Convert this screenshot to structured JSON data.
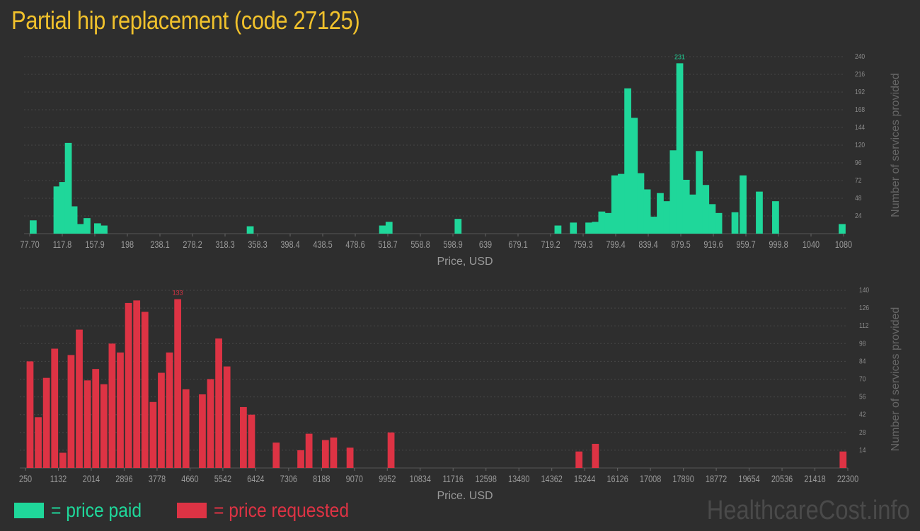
{
  "title": "Partial hip replacement (code 27125)",
  "colors": {
    "paid": "#1fd79a",
    "requested": "#dd3344",
    "title": "#f0c12c"
  },
  "legend": {
    "paid": "= price paid",
    "requested": "= price requested"
  },
  "watermark": "HealthcareCost.info",
  "chart_data": [
    {
      "type": "bar",
      "series": [
        {
          "name": "price paid",
          "color": "#1fd79a"
        }
      ],
      "xlabel": "Price, USD",
      "ylabel": "Number of services provided",
      "ylim": [
        0,
        240
      ],
      "yticks": [
        24,
        48,
        72,
        96,
        120,
        144,
        168,
        192,
        216,
        240
      ],
      "xlim": [
        77.7,
        1080
      ],
      "xticks": [
        "77.70",
        "117.8",
        "157.9",
        "198",
        "238.1",
        "278.2",
        "318.3",
        "358.3",
        "398.4",
        "438.5",
        "478.6",
        "518.7",
        "558.8",
        "598.9",
        "639",
        "679.1",
        "719.2",
        "759.3",
        "799.4",
        "839.4",
        "879.5",
        "919.6",
        "959.7",
        "999.8",
        "1040",
        "1080"
      ],
      "max_label": "231",
      "bin_width": 8.5,
      "bars": [
        {
          "x": 77.7,
          "y": 18
        },
        {
          "x": 107,
          "y": 64
        },
        {
          "x": 114,
          "y": 70
        },
        {
          "x": 121,
          "y": 123
        },
        {
          "x": 128,
          "y": 37
        },
        {
          "x": 136,
          "y": 13
        },
        {
          "x": 144,
          "y": 21
        },
        {
          "x": 157,
          "y": 14
        },
        {
          "x": 165,
          "y": 11
        },
        {
          "x": 345,
          "y": 10
        },
        {
          "x": 508,
          "y": 11
        },
        {
          "x": 516,
          "y": 16
        },
        {
          "x": 601,
          "y": 20
        },
        {
          "x": 724,
          "y": 11
        },
        {
          "x": 743,
          "y": 15
        },
        {
          "x": 762,
          "y": 15
        },
        {
          "x": 770,
          "y": 16
        },
        {
          "x": 778,
          "y": 30
        },
        {
          "x": 786,
          "y": 28
        },
        {
          "x": 794,
          "y": 79
        },
        {
          "x": 802,
          "y": 81
        },
        {
          "x": 810,
          "y": 197
        },
        {
          "x": 818,
          "y": 157
        },
        {
          "x": 826,
          "y": 82
        },
        {
          "x": 834,
          "y": 60
        },
        {
          "x": 842,
          "y": 23
        },
        {
          "x": 850,
          "y": 55
        },
        {
          "x": 858,
          "y": 44
        },
        {
          "x": 866,
          "y": 113
        },
        {
          "x": 874,
          "y": 231
        },
        {
          "x": 882,
          "y": 73
        },
        {
          "x": 890,
          "y": 53
        },
        {
          "x": 898,
          "y": 112
        },
        {
          "x": 906,
          "y": 66
        },
        {
          "x": 914,
          "y": 40
        },
        {
          "x": 922,
          "y": 28
        },
        {
          "x": 942,
          "y": 29
        },
        {
          "x": 952,
          "y": 79
        },
        {
          "x": 972,
          "y": 57
        },
        {
          "x": 992,
          "y": 44
        },
        {
          "x": 1074,
          "y": 13
        }
      ]
    },
    {
      "type": "bar",
      "series": [
        {
          "name": "price requested",
          "color": "#dd3344"
        }
      ],
      "xlabel": "Price, USD",
      "ylabel": "Number of services provided",
      "ylim": [
        0,
        140
      ],
      "yticks": [
        14,
        28,
        42,
        56,
        70,
        84,
        98,
        112,
        126,
        140
      ],
      "xlim": [
        250,
        22300
      ],
      "xticks": [
        "250",
        "1132",
        "2014",
        "2896",
        "3778",
        "4660",
        "5542",
        "6424",
        "7306",
        "8188",
        "9070",
        "9952",
        "10834",
        "11716",
        "12598",
        "13480",
        "14362",
        "15244",
        "16126",
        "17008",
        "17890",
        "18772",
        "19654",
        "20536",
        "21418",
        "22300"
      ],
      "max_label": "133",
      "bin_width": 185,
      "bars": [
        {
          "x": 280,
          "y": 84
        },
        {
          "x": 500,
          "y": 40
        },
        {
          "x": 720,
          "y": 71
        },
        {
          "x": 940,
          "y": 94
        },
        {
          "x": 1160,
          "y": 12
        },
        {
          "x": 1380,
          "y": 89
        },
        {
          "x": 1600,
          "y": 109
        },
        {
          "x": 1820,
          "y": 69
        },
        {
          "x": 2040,
          "y": 78
        },
        {
          "x": 2260,
          "y": 66
        },
        {
          "x": 2480,
          "y": 98
        },
        {
          "x": 2700,
          "y": 91
        },
        {
          "x": 2920,
          "y": 130
        },
        {
          "x": 3140,
          "y": 132
        },
        {
          "x": 3360,
          "y": 123
        },
        {
          "x": 3580,
          "y": 52
        },
        {
          "x": 3800,
          "y": 75
        },
        {
          "x": 4020,
          "y": 91
        },
        {
          "x": 4240,
          "y": 133
        },
        {
          "x": 4460,
          "y": 62
        },
        {
          "x": 4900,
          "y": 58
        },
        {
          "x": 5120,
          "y": 70
        },
        {
          "x": 5340,
          "y": 102
        },
        {
          "x": 5560,
          "y": 80
        },
        {
          "x": 6000,
          "y": 48
        },
        {
          "x": 6220,
          "y": 42
        },
        {
          "x": 6880,
          "y": 20
        },
        {
          "x": 7540,
          "y": 14
        },
        {
          "x": 7760,
          "y": 27
        },
        {
          "x": 8200,
          "y": 22
        },
        {
          "x": 8420,
          "y": 24
        },
        {
          "x": 8860,
          "y": 16
        },
        {
          "x": 9960,
          "y": 28
        },
        {
          "x": 15000,
          "y": 13
        },
        {
          "x": 15440,
          "y": 19
        },
        {
          "x": 22080,
          "y": 13
        }
      ]
    }
  ]
}
